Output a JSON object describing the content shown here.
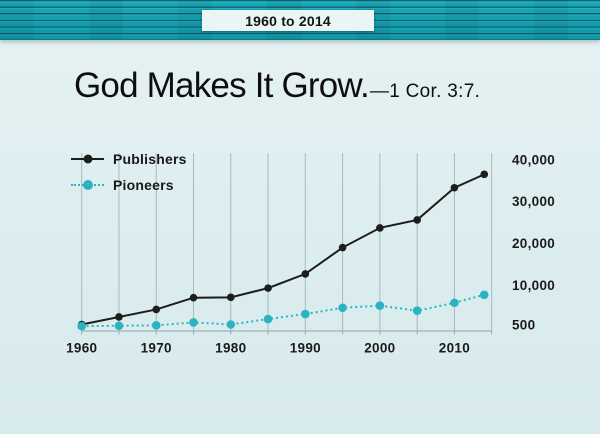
{
  "slide": {
    "banner_label": "1960 to 2014",
    "title": "God Makes It Grow.",
    "title_reference": "—1 Cor. 3:7.",
    "colors": {
      "banner_teal": "#13a2b1",
      "banner_box_bg": "#eaf5f6",
      "slide_background": "#ddedef",
      "text": "#141414"
    }
  },
  "chart_data": {
    "type": "line",
    "title": "",
    "xlabel": "",
    "ylabel": "",
    "x": [
      1960,
      1965,
      1970,
      1975,
      1980,
      1985,
      1990,
      1995,
      2000,
      2005,
      2010,
      2014
    ],
    "series": [
      {
        "name": "Publishers",
        "style": "solid",
        "color": "#1d1d1b",
        "values": [
          500,
          2300,
          4100,
          6900,
          7000,
          9200,
          12600,
          18900,
          23600,
          25500,
          33200,
          36400
        ]
      },
      {
        "name": "Pioneers",
        "style": "dotted",
        "color": "#2bb3c2",
        "values": [
          100,
          200,
          300,
          1000,
          500,
          1800,
          3000,
          4500,
          5000,
          3800,
          5700,
          7600
        ]
      }
    ],
    "x_ticks": {
      "years": [
        1960,
        1970,
        1980,
        1990,
        2000,
        2010
      ],
      "labels": [
        "1960",
        "1970",
        "1980",
        "1990",
        "2000",
        "2010"
      ]
    },
    "y_ticks": {
      "values": [
        500,
        10000,
        20000,
        30000,
        40000
      ],
      "labels": [
        "500",
        "10,000",
        "20,000",
        "30,000",
        "40,000"
      ]
    },
    "x_range": [
      1960,
      2015
    ],
    "ylim": [
      0,
      40000
    ],
    "y_axis_side": "right",
    "gridlines": "vertical-every-5-years",
    "legend_position": "top-left"
  }
}
